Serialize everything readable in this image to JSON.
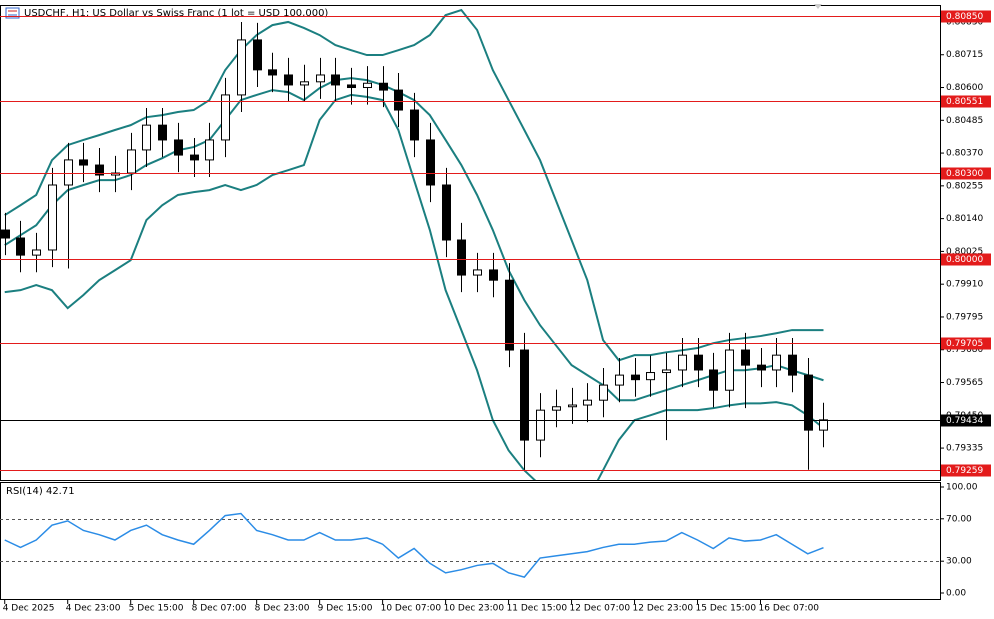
{
  "chart_data": [
    {
      "type": "candlestick",
      "title": "USDCHF, H1: US Dollar vs Swiss Franc (1 lot = USD 100,000)",
      "xlim": [
        -0.3,
        59.4
      ],
      "xticks": [
        {
          "value": 0,
          "label": "4 Dec 2025"
        },
        {
          "value": 4,
          "label": "4 Dec 23:00"
        },
        {
          "value": 8,
          "label": "5 Dec 15:00"
        },
        {
          "value": 12,
          "label": "8 Dec 07:00"
        },
        {
          "value": 16,
          "label": "8 Dec 23:00"
        },
        {
          "value": 20,
          "label": "9 Dec 15:00"
        },
        {
          "value": 24,
          "label": "10 Dec 07:00"
        },
        {
          "value": 28,
          "label": "10 Dec 23:00"
        },
        {
          "value": 32,
          "label": "11 Dec 15:00"
        },
        {
          "value": 36,
          "label": "12 Dec 07:00"
        },
        {
          "value": 40,
          "label": "12 Dec 23:00"
        },
        {
          "value": 44,
          "label": "15 Dec 15:00"
        },
        {
          "value": 48,
          "label": "16 Dec 07:00"
        }
      ],
      "ylim": [
        0.79223,
        0.80886
      ],
      "yticks": [
        {
          "value": 0.8083,
          "label": "0.80830"
        },
        0.80715,
        {
          "value": 0.806,
          "label": "0.80600"
        },
        0.80485,
        {
          "value": 0.8037,
          "label": "0.80370"
        },
        0.80255,
        {
          "value": 0.8014,
          "label": "0.80140"
        },
        0.80025,
        {
          "value": 0.7991,
          "label": "0.79910"
        },
        0.79795,
        {
          "value": 0.7968,
          "label": "0.79680"
        },
        0.79565,
        {
          "value": 0.7945,
          "label": "0.79450"
        },
        0.79335
      ],
      "open": [
        0.801,
        0.80072,
        0.80012,
        0.8003,
        0.80258,
        0.80346,
        0.80328,
        0.80293,
        0.803,
        0.80381,
        0.80468,
        0.80416,
        0.80363,
        0.80346,
        0.80416,
        0.80574,
        0.80767,
        0.80662,
        0.80644,
        0.80609,
        0.8062,
        0.80644,
        0.80609,
        0.806,
        0.80615,
        0.80591,
        0.80521,
        0.80416,
        0.80258,
        0.80065,
        0.79942,
        0.7996,
        0.79924,
        0.79679,
        0.79363,
        0.79468,
        0.7948,
        0.79486,
        0.79503,
        0.79556,
        0.79591,
        0.79575,
        0.796,
        0.79609,
        0.79661,
        0.79609,
        0.79538,
        0.79679,
        0.79626,
        0.79609,
        0.79661,
        0.79591,
        0.79398
      ],
      "high": [
        0.8016,
        0.80132,
        0.8009,
        0.80318,
        0.80406,
        0.80406,
        0.80388,
        0.8036,
        0.80441,
        0.80528,
        0.80528,
        0.80476,
        0.80423,
        0.80476,
        0.80634,
        0.8083,
        0.80827,
        0.80722,
        0.80704,
        0.8068,
        0.80704,
        0.80704,
        0.80669,
        0.80675,
        0.80675,
        0.80651,
        0.80581,
        0.80476,
        0.80318,
        0.80125,
        0.8002,
        0.8002,
        0.79984,
        0.79739,
        0.79528,
        0.7954,
        0.79546,
        0.79563,
        0.79616,
        0.79651,
        0.79651,
        0.7966,
        0.79669,
        0.79721,
        0.79721,
        0.79669,
        0.79739,
        0.79739,
        0.79686,
        0.79721,
        0.79721,
        0.79651,
        0.79494
      ],
      "low": [
        0.80012,
        0.79952,
        0.79952,
        0.7997,
        0.79965,
        0.80268,
        0.80233,
        0.80233,
        0.8024,
        0.80321,
        0.80356,
        0.80303,
        0.80286,
        0.80286,
        0.80356,
        0.80514,
        0.80602,
        0.80584,
        0.80549,
        0.80549,
        0.8056,
        0.80549,
        0.8054,
        0.8054,
        0.80531,
        0.80461,
        0.80356,
        0.80198,
        0.80005,
        0.79882,
        0.79882,
        0.79864,
        0.79619,
        0.79259,
        0.79303,
        0.79408,
        0.7942,
        0.79426,
        0.79443,
        0.79496,
        0.79515,
        0.79515,
        0.79363,
        0.79549,
        0.79549,
        0.79478,
        0.79478,
        0.79475,
        0.79549,
        0.79549,
        0.79531,
        0.79259,
        0.79338
      ],
      "close": [
        0.80072,
        0.80012,
        0.8003,
        0.80258,
        0.80346,
        0.80328,
        0.80293,
        0.803,
        0.80381,
        0.80468,
        0.80416,
        0.80363,
        0.80346,
        0.80416,
        0.80574,
        0.80767,
        0.80662,
        0.80644,
        0.80609,
        0.8062,
        0.80644,
        0.80609,
        0.806,
        0.80615,
        0.80591,
        0.80521,
        0.80416,
        0.80258,
        0.80065,
        0.79942,
        0.7996,
        0.79924,
        0.79679,
        0.79363,
        0.79468,
        0.7948,
        0.79486,
        0.79503,
        0.79556,
        0.79591,
        0.79575,
        0.796,
        0.79609,
        0.79661,
        0.79609,
        0.79538,
        0.79679,
        0.79626,
        0.79609,
        0.79661,
        0.79591,
        0.79398,
        0.79434
      ],
      "band_color": "#1b7f80",
      "upper": [
        0.80152,
        0.80187,
        0.80223,
        0.80345,
        0.80398,
        0.80416,
        0.80433,
        0.80451,
        0.80468,
        0.80496,
        0.80503,
        0.80514,
        0.80521,
        0.80556,
        0.80661,
        0.80731,
        0.80784,
        0.80819,
        0.8083,
        0.80809,
        0.80784,
        0.80749,
        0.80731,
        0.80714,
        0.80714,
        0.80731,
        0.80749,
        0.80784,
        0.80854,
        0.80872,
        0.80802,
        0.80661,
        0.80556,
        0.80451,
        0.80345,
        0.80205,
        0.80065,
        0.79924,
        0.79714,
        0.79643,
        0.79661,
        0.79661,
        0.79671,
        0.79678,
        0.79686,
        0.79703,
        0.79714,
        0.79721,
        0.79728,
        0.79738,
        0.79749,
        0.79749,
        0.79749
      ],
      "middle": [
        0.80047,
        0.80082,
        0.80117,
        0.80187,
        0.8024,
        0.80258,
        0.80275,
        0.80275,
        0.80293,
        0.80328,
        0.80352,
        0.8038,
        0.80391,
        0.80416,
        0.80486,
        0.80556,
        0.80574,
        0.80591,
        0.80584,
        0.80556,
        0.80598,
        0.80626,
        0.80633,
        0.80626,
        0.80609,
        0.80584,
        0.80556,
        0.80503,
        0.80416,
        0.80328,
        0.80223,
        0.801,
        0.79959,
        0.79854,
        0.79766,
        0.79696,
        0.79626,
        0.79591,
        0.79556,
        0.79503,
        0.79503,
        0.79521,
        0.79538,
        0.79556,
        0.79573,
        0.79591,
        0.79608,
        0.79608,
        0.79615,
        0.79626,
        0.79608,
        0.79591,
        0.79573
      ],
      "lower": [
        0.79882,
        0.79889,
        0.79907,
        0.79889,
        0.79826,
        0.79872,
        0.79924,
        0.79959,
        0.79994,
        0.80135,
        0.80187,
        0.80223,
        0.80233,
        0.8024,
        0.80258,
        0.8024,
        0.80258,
        0.80293,
        0.8031,
        0.80328,
        0.80486,
        0.80556,
        0.80574,
        0.80567,
        0.80556,
        0.80451,
        0.80275,
        0.801,
        0.79889,
        0.79749,
        0.79608,
        0.79433,
        0.79327,
        0.79257,
        0.79205,
        0.79187,
        0.7917,
        0.79152,
        0.79257,
        0.79363,
        0.79433,
        0.7945,
        0.79468,
        0.79468,
        0.79468,
        0.79475,
        0.79485,
        0.79492,
        0.79492,
        0.79496,
        0.79485,
        0.7945,
        0.79405
      ],
      "levels": [
        {
          "value": 0.8085,
          "label": "0.80850"
        },
        {
          "value": 0.80551,
          "label": "0.80551"
        },
        {
          "value": 0.803,
          "label": "0.80300"
        },
        {
          "value": 0.8,
          "label": "0.80000"
        },
        {
          "value": 0.79705,
          "label": "0.79705"
        },
        {
          "value": 0.79259,
          "label": "0.79259"
        }
      ],
      "level_color": "#e31b1b",
      "current_price": {
        "value": 0.79434,
        "label": "0.79434"
      }
    },
    {
      "type": "line",
      "title": "RSI(14) 42.71",
      "color": "#2b8ce6",
      "ylim": [
        0,
        100
      ],
      "yticks": [
        {
          "value": 100,
          "label": "100.00"
        },
        {
          "value": 70,
          "label": "70.00"
        },
        {
          "value": 30,
          "label": "30.00"
        },
        {
          "value": 0,
          "label": "0.00"
        }
      ],
      "levels": [
        70,
        30
      ],
      "values": [
        50,
        43,
        50,
        64,
        68,
        59,
        55,
        50,
        59,
        64,
        55,
        50,
        46,
        59,
        73,
        75,
        59,
        55,
        50,
        50,
        57,
        50,
        50,
        52,
        46,
        33,
        42,
        28,
        19,
        22,
        26,
        28,
        19,
        15,
        33,
        35,
        37,
        39,
        43,
        46,
        46,
        48,
        49,
        57,
        50,
        42,
        52,
        49,
        50,
        55,
        46,
        37,
        42.71
      ]
    }
  ]
}
